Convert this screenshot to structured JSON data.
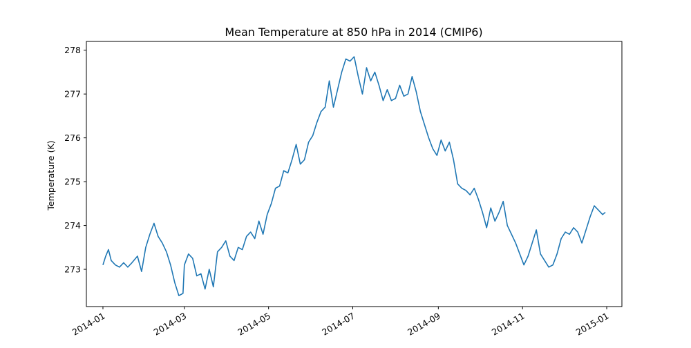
{
  "chart_data": {
    "type": "line",
    "title": "Mean Temperature at 850 hPa in 2014 (CMIP6)",
    "xlabel": "",
    "ylabel": "Temperature (K)",
    "x_range": [
      "2013-12-20",
      "2015-01-12"
    ],
    "ylim": [
      272.15,
      278.2
    ],
    "grid": false,
    "line_color": "#1f77b4",
    "x_ticks": [
      "2014-01",
      "2014-03",
      "2014-05",
      "2014-07",
      "2014-09",
      "2014-11",
      "2015-01"
    ],
    "y_ticks": [
      273,
      274,
      275,
      276,
      277,
      278
    ],
    "series": [
      {
        "x": [
          "2014-01-01",
          "2014-01-03",
          "2014-01-05",
          "2014-01-07",
          "2014-01-10",
          "2014-01-13",
          "2014-01-16",
          "2014-01-19",
          "2014-01-22",
          "2014-01-26",
          "2014-01-29",
          "2014-02-01",
          "2014-02-04",
          "2014-02-07",
          "2014-02-10",
          "2014-02-13",
          "2014-02-16",
          "2014-02-19",
          "2014-02-22",
          "2014-02-25",
          "2014-02-28",
          "2014-03-01",
          "2014-03-04",
          "2014-03-07",
          "2014-03-10",
          "2014-03-13",
          "2014-03-16",
          "2014-03-19",
          "2014-03-22",
          "2014-03-25",
          "2014-03-28",
          "2014-03-31",
          "2014-04-03",
          "2014-04-06",
          "2014-04-09",
          "2014-04-12",
          "2014-04-15",
          "2014-04-18",
          "2014-04-21",
          "2014-04-24",
          "2014-04-27",
          "2014-04-30",
          "2014-05-03",
          "2014-05-06",
          "2014-05-09",
          "2014-05-12",
          "2014-05-15",
          "2014-05-18",
          "2014-05-21",
          "2014-05-24",
          "2014-05-27",
          "2014-05-30",
          "2014-06-02",
          "2014-06-05",
          "2014-06-08",
          "2014-06-11",
          "2014-06-14",
          "2014-06-17",
          "2014-06-20",
          "2014-06-23",
          "2014-06-26",
          "2014-06-29",
          "2014-07-02",
          "2014-07-05",
          "2014-07-08",
          "2014-07-11",
          "2014-07-14",
          "2014-07-17",
          "2014-07-20",
          "2014-07-23",
          "2014-07-26",
          "2014-07-29",
          "2014-08-01",
          "2014-08-04",
          "2014-08-07",
          "2014-08-10",
          "2014-08-13",
          "2014-08-16",
          "2014-08-19",
          "2014-08-22",
          "2014-08-25",
          "2014-08-28",
          "2014-08-31",
          "2014-09-03",
          "2014-09-06",
          "2014-09-09",
          "2014-09-12",
          "2014-09-15",
          "2014-09-18",
          "2014-09-21",
          "2014-09-24",
          "2014-09-27",
          "2014-09-30",
          "2014-10-03",
          "2014-10-06",
          "2014-10-09",
          "2014-10-12",
          "2014-10-15",
          "2014-10-18",
          "2014-10-21",
          "2014-10-24",
          "2014-10-27",
          "2014-10-30",
          "2014-11-02",
          "2014-11-05",
          "2014-11-08",
          "2014-11-11",
          "2014-11-14",
          "2014-11-17",
          "2014-11-20",
          "2014-11-23",
          "2014-11-26",
          "2014-11-29",
          "2014-12-02",
          "2014-12-05",
          "2014-12-08",
          "2014-12-11",
          "2014-12-14",
          "2014-12-17",
          "2014-12-20",
          "2014-12-23",
          "2014-12-26",
          "2014-12-29",
          "2014-12-31"
        ],
        "values": [
          273.1,
          273.3,
          273.45,
          273.2,
          273.1,
          273.05,
          273.15,
          273.05,
          273.15,
          273.3,
          272.95,
          273.5,
          273.8,
          274.05,
          273.75,
          273.6,
          273.4,
          273.1,
          272.7,
          272.4,
          272.45,
          273.1,
          273.35,
          273.25,
          272.85,
          272.9,
          272.55,
          273.0,
          272.6,
          273.4,
          273.5,
          273.65,
          273.3,
          273.2,
          273.5,
          273.45,
          273.75,
          273.85,
          273.7,
          274.1,
          273.8,
          274.25,
          274.5,
          274.85,
          274.9,
          275.25,
          275.2,
          275.5,
          275.85,
          275.4,
          275.5,
          275.9,
          276.05,
          276.35,
          276.6,
          276.7,
          277.3,
          276.7,
          277.1,
          277.5,
          277.8,
          277.75,
          277.85,
          277.4,
          277.0,
          277.6,
          277.3,
          277.5,
          277.2,
          276.85,
          277.1,
          276.85,
          276.9,
          277.2,
          276.95,
          277.0,
          277.4,
          277.05,
          276.6,
          276.3,
          276.0,
          275.75,
          275.6,
          275.95,
          275.7,
          275.9,
          275.5,
          274.95,
          274.85,
          274.8,
          274.7,
          274.85,
          274.6,
          274.3,
          273.95,
          274.4,
          274.1,
          274.3,
          274.55,
          274.0,
          273.8,
          273.6,
          273.35,
          273.1,
          273.3,
          273.6,
          273.9,
          273.35,
          273.2,
          273.05,
          273.1,
          273.35,
          273.7,
          273.85,
          273.8,
          273.95,
          273.85,
          273.6,
          273.9,
          274.2,
          274.45,
          274.35,
          274.25,
          274.3
        ]
      }
    ]
  }
}
